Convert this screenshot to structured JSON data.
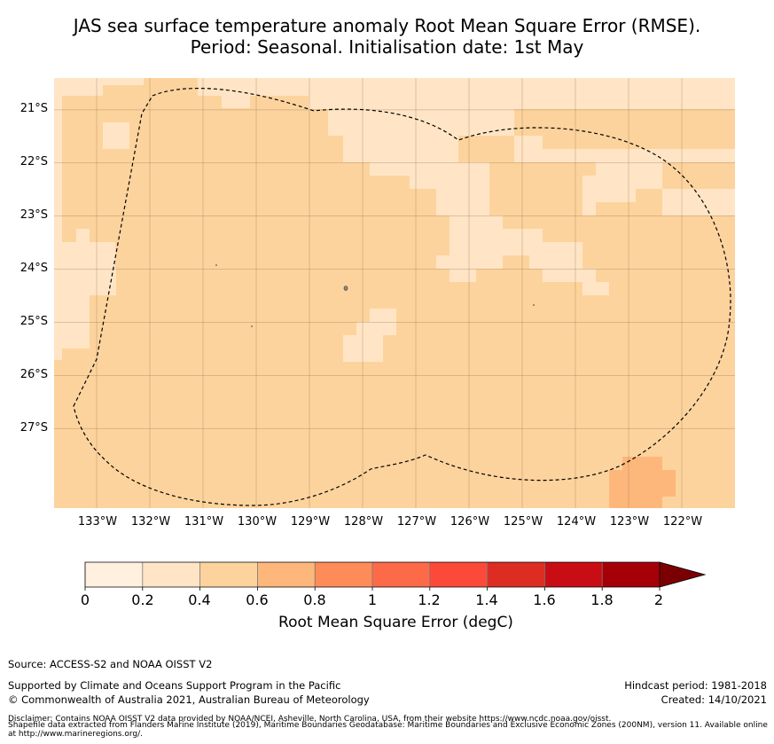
{
  "title": {
    "line1": "JAS sea surface temperature anomaly Root Mean Square Error (RMSE).",
    "line2": "Period: Seasonal. Initialisation date: 1st May"
  },
  "map": {
    "lon_range": [
      -133.8,
      -121.0
    ],
    "lat_range": [
      -28.5,
      -20.4
    ],
    "lat_ticks": [
      {
        "value": -21,
        "label": "21°S"
      },
      {
        "value": -22,
        "label": "22°S"
      },
      {
        "value": -23,
        "label": "23°S"
      },
      {
        "value": -24,
        "label": "24°S"
      },
      {
        "value": -25,
        "label": "25°S"
      },
      {
        "value": -26,
        "label": "26°S"
      },
      {
        "value": -27,
        "label": "27°S"
      }
    ],
    "lon_ticks": [
      {
        "value": -133,
        "label": "133°W"
      },
      {
        "value": -132,
        "label": "132°W"
      },
      {
        "value": -131,
        "label": "131°W"
      },
      {
        "value": -130,
        "label": "130°W"
      },
      {
        "value": -129,
        "label": "129°W"
      },
      {
        "value": -128,
        "label": "128°W"
      },
      {
        "value": -127,
        "label": "127°W"
      },
      {
        "value": -126,
        "label": "126°W"
      },
      {
        "value": -125,
        "label": "125°W"
      },
      {
        "value": -124,
        "label": "124°W"
      },
      {
        "value": -123,
        "label": "123°W"
      },
      {
        "value": -122,
        "label": "122°W"
      }
    ],
    "background_rmse_class": "0.4–0.6",
    "eez_boundary": "dashed"
  },
  "colorbar": {
    "ticks": [
      "0",
      "0.2",
      "0.4",
      "0.6",
      "0.8",
      "1",
      "1.2",
      "1.4",
      "1.6",
      "1.8",
      "2"
    ],
    "colors": [
      "#fff0df",
      "#ffe5c5",
      "#fdd39d",
      "#fdb77b",
      "#fd8c58",
      "#fd6a48",
      "#fc4a3a",
      "#dd2d22",
      "#c80e14",
      "#a50008"
    ],
    "extend_color": "#7a0004",
    "label": "Root Mean Square Error (degC)"
  },
  "footer": {
    "source": "Source: ACCESS-S2 and NOAA OISST V2",
    "support": "Supported by Climate and Oceans Support Program in the Pacific",
    "copyright": "© Commonwealth of Australia 2021, Australian Bureau of Meteorology",
    "hindcast": "Hindcast period: 1981-2018",
    "created": "Created: 14/10/2021",
    "disclaimer1": "Disclaimer: Contains NOAA OISST V2 data provided by NOAA/NCEI, Asheville, North Carolina, USA, from their website https://www.ncdc.noaa.gov/oisst.",
    "disclaimer2": "Shapefile data extracted from Flanders Marine Institute (2019), Maritime Boundaries Geodatabase: Maritime Boundaries and Exclusive Economic Zones (200NM), version 11. Available online at http://www.marineregions.org/."
  }
}
